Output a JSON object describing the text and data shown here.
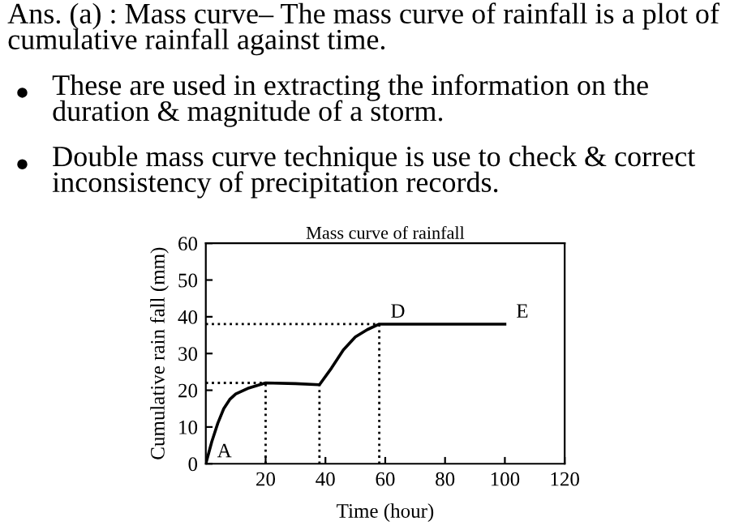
{
  "chart_data": {
    "type": "line",
    "title": "Mass curve of rainfall",
    "xlabel": "Time (hour)",
    "ylabel": "Cumulative rain fall (mm)",
    "x": [
      0,
      2,
      4,
      6,
      8,
      10,
      14,
      20,
      30,
      38,
      42,
      46,
      50,
      54,
      58,
      70,
      100
    ],
    "series": [
      {
        "color": "#000000",
        "values": [
          0,
          6,
          11,
          15,
          17.5,
          19,
          20.5,
          22,
          21.8,
          21.5,
          26,
          31,
          34.5,
          36.5,
          38,
          38,
          38
        ]
      }
    ],
    "xlim": [
      0,
      120
    ],
    "xticks": [
      20,
      40,
      60,
      80,
      100,
      120
    ],
    "ylim": [
      0,
      60
    ],
    "yticks": [
      0,
      10,
      20,
      30,
      40,
      50,
      60
    ],
    "grid": false,
    "legend": false,
    "marker": "none",
    "line_style": "solid",
    "ref_lines": [
      {
        "axis": "y",
        "value": 22,
        "line_style": "dotted"
      },
      {
        "axis": "y",
        "value": 38,
        "line_style": "dotted"
      },
      {
        "axis": "x",
        "value": 20,
        "line_style": "dotted"
      },
      {
        "axis": "x",
        "value": 38,
        "line_style": "dotted"
      },
      {
        "axis": "x",
        "value": 58,
        "line_style": "dotted"
      }
    ],
    "annotations": [
      {
        "text": "A",
        "x": 0,
        "y": 0
      },
      {
        "text": "D",
        "x": 58,
        "y": 38
      },
      {
        "text": "E",
        "x": 100,
        "y": 38
      },
      "Ans. (a) : Mass curve– The mass curve of rainfall is a plot of cumulative rainfall against time.",
      "These are used in extracting the information on the duration & magnitude of a storm.",
      "Double mass curve technique is use to check & correct inconsistency of precipitation records."
    ]
  }
}
